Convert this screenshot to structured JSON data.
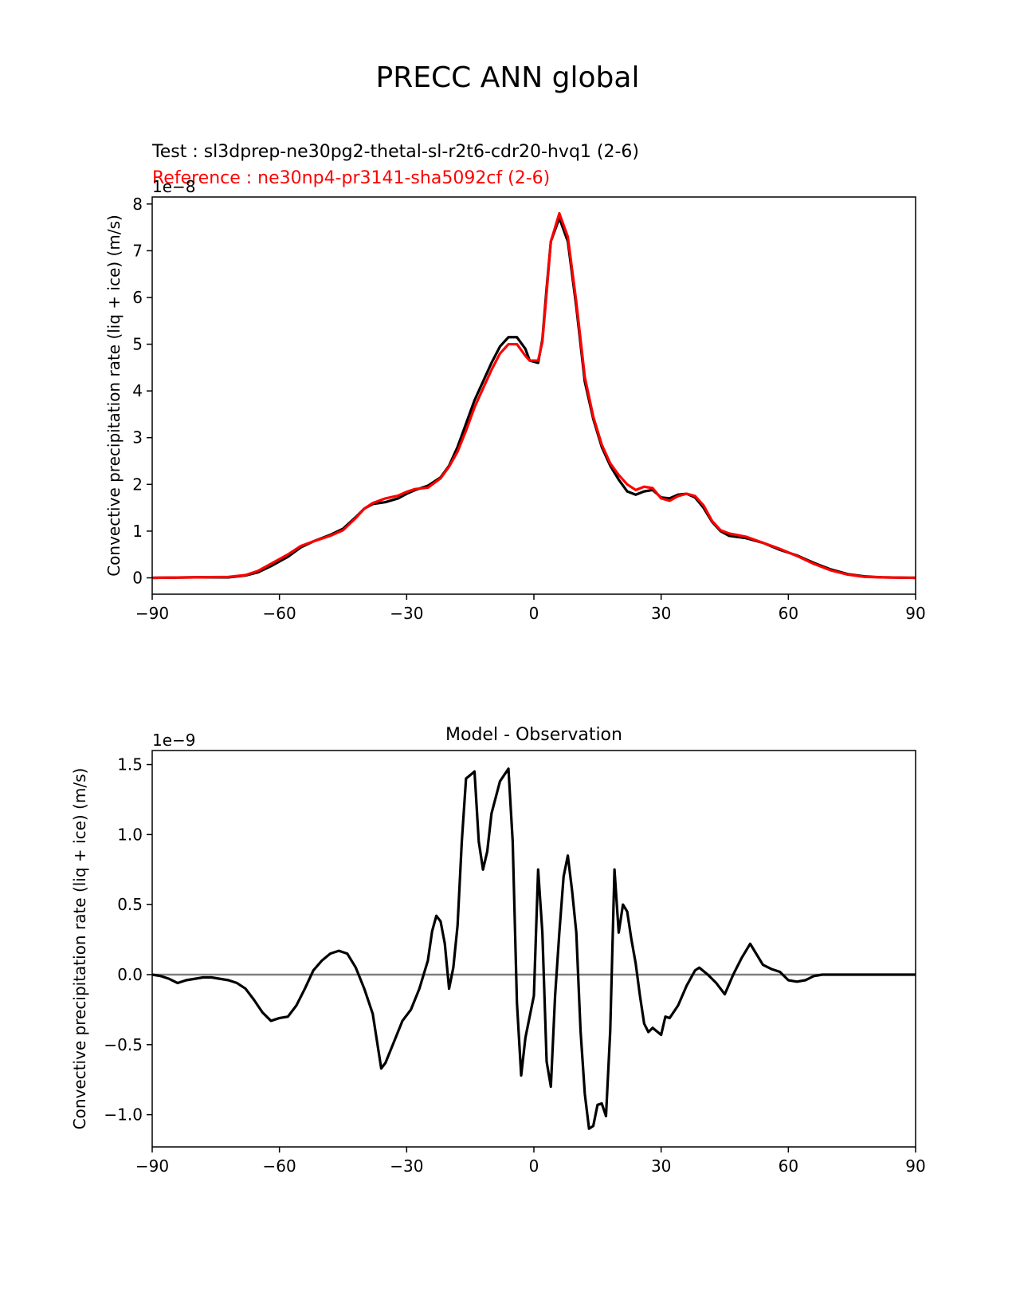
{
  "figure": {
    "title": "PRECC ANN global",
    "test_label": "Test : sl3dprep-ne30pg2-thetal-sl-r2t6-cdr20-hvq1 (2-6)",
    "reference_label": "Reference : ne30np4-pr3141-sha5092cf (2-6)",
    "colors": {
      "test": "#000000",
      "reference": "#ff0000",
      "zero_line": "#808080",
      "axes": "#000000"
    }
  },
  "chart_data": [
    {
      "type": "line",
      "title": "",
      "xlabel": "",
      "ylabel": "Convective precipitation rate (liq + ice) (m/s)",
      "y_offset_label": "1e−8",
      "y_scale": 1e-08,
      "xlim": [
        -90,
        90
      ],
      "ylim": [
        -0.35,
        8.15
      ],
      "xticks": [
        -90,
        -60,
        -30,
        0,
        30,
        60,
        90
      ],
      "xtick_labels": [
        "−90",
        "−60",
        "−30",
        "0",
        "30",
        "60",
        "90"
      ],
      "yticks": [
        0,
        1,
        2,
        3,
        4,
        5,
        6,
        7,
        8
      ],
      "ytick_labels": [
        "0",
        "1",
        "2",
        "3",
        "4",
        "5",
        "6",
        "7",
        "8"
      ],
      "grid": false,
      "series": [
        {
          "name": "Test : sl3dprep-ne30pg2-thetal-sl-r2t6-cdr20-hvq1 (2-6)",
          "color": "#000000",
          "points": [
            [
              -90,
              0.0
            ],
            [
              -80,
              0.01
            ],
            [
              -72,
              0.01
            ],
            [
              -68,
              0.05
            ],
            [
              -65,
              0.12
            ],
            [
              -62,
              0.25
            ],
            [
              -58,
              0.45
            ],
            [
              -55,
              0.65
            ],
            [
              -52,
              0.78
            ],
            [
              -48,
              0.92
            ],
            [
              -45,
              1.05
            ],
            [
              -42,
              1.3
            ],
            [
              -40,
              1.48
            ],
            [
              -38,
              1.58
            ],
            [
              -35,
              1.62
            ],
            [
              -32,
              1.7
            ],
            [
              -30,
              1.8
            ],
            [
              -28,
              1.88
            ],
            [
              -25,
              1.97
            ],
            [
              -22,
              2.15
            ],
            [
              -20,
              2.4
            ],
            [
              -18,
              2.8
            ],
            [
              -16,
              3.3
            ],
            [
              -14,
              3.8
            ],
            [
              -12,
              4.2
            ],
            [
              -10,
              4.6
            ],
            [
              -8,
              4.95
            ],
            [
              -6,
              5.15
            ],
            [
              -4,
              5.15
            ],
            [
              -2,
              4.9
            ],
            [
              -1,
              4.65
            ],
            [
              1,
              4.6
            ],
            [
              2,
              5.1
            ],
            [
              3,
              6.2
            ],
            [
              4,
              7.2
            ],
            [
              6,
              7.7
            ],
            [
              8,
              7.2
            ],
            [
              10,
              5.8
            ],
            [
              12,
              4.2
            ],
            [
              14,
              3.4
            ],
            [
              16,
              2.8
            ],
            [
              18,
              2.4
            ],
            [
              20,
              2.1
            ],
            [
              22,
              1.85
            ],
            [
              24,
              1.78
            ],
            [
              26,
              1.85
            ],
            [
              28,
              1.88
            ],
            [
              30,
              1.72
            ],
            [
              32,
              1.7
            ],
            [
              34,
              1.78
            ],
            [
              36,
              1.8
            ],
            [
              38,
              1.72
            ],
            [
              40,
              1.5
            ],
            [
              42,
              1.2
            ],
            [
              44,
              1.0
            ],
            [
              46,
              0.9
            ],
            [
              50,
              0.85
            ],
            [
              54,
              0.75
            ],
            [
              58,
              0.6
            ],
            [
              62,
              0.48
            ],
            [
              66,
              0.32
            ],
            [
              70,
              0.18
            ],
            [
              74,
              0.08
            ],
            [
              78,
              0.03
            ],
            [
              82,
              0.01
            ],
            [
              90,
              0.0
            ]
          ]
        },
        {
          "name": "Reference : ne30np4-pr3141-sha5092cf (2-6)",
          "color": "#ff0000",
          "points": [
            [
              -90,
              0.0
            ],
            [
              -80,
              0.01
            ],
            [
              -72,
              0.02
            ],
            [
              -68,
              0.06
            ],
            [
              -65,
              0.15
            ],
            [
              -62,
              0.3
            ],
            [
              -58,
              0.5
            ],
            [
              -55,
              0.68
            ],
            [
              -52,
              0.78
            ],
            [
              -48,
              0.9
            ],
            [
              -45,
              1.02
            ],
            [
              -42,
              1.28
            ],
            [
              -40,
              1.48
            ],
            [
              -38,
              1.6
            ],
            [
              -35,
              1.7
            ],
            [
              -32,
              1.76
            ],
            [
              -30,
              1.84
            ],
            [
              -28,
              1.9
            ],
            [
              -25,
              1.93
            ],
            [
              -22,
              2.13
            ],
            [
              -20,
              2.38
            ],
            [
              -18,
              2.7
            ],
            [
              -16,
              3.15
            ],
            [
              -14,
              3.65
            ],
            [
              -12,
              4.05
            ],
            [
              -10,
              4.45
            ],
            [
              -8,
              4.8
            ],
            [
              -6,
              5.0
            ],
            [
              -4,
              5.0
            ],
            [
              -2,
              4.75
            ],
            [
              -1,
              4.65
            ],
            [
              1,
              4.65
            ],
            [
              2,
              5.05
            ],
            [
              3,
              6.1
            ],
            [
              4,
              7.2
            ],
            [
              6,
              7.8
            ],
            [
              8,
              7.3
            ],
            [
              10,
              5.9
            ],
            [
              12,
              4.3
            ],
            [
              14,
              3.45
            ],
            [
              16,
              2.85
            ],
            [
              18,
              2.45
            ],
            [
              20,
              2.2
            ],
            [
              22,
              2.0
            ],
            [
              24,
              1.88
            ],
            [
              26,
              1.95
            ],
            [
              28,
              1.92
            ],
            [
              30,
              1.7
            ],
            [
              32,
              1.65
            ],
            [
              34,
              1.75
            ],
            [
              36,
              1.8
            ],
            [
              38,
              1.75
            ],
            [
              40,
              1.55
            ],
            [
              42,
              1.22
            ],
            [
              44,
              1.02
            ],
            [
              46,
              0.95
            ],
            [
              50,
              0.88
            ],
            [
              54,
              0.75
            ],
            [
              58,
              0.62
            ],
            [
              62,
              0.47
            ],
            [
              66,
              0.3
            ],
            [
              70,
              0.16
            ],
            [
              74,
              0.07
            ],
            [
              78,
              0.02
            ],
            [
              82,
              0.01
            ],
            [
              90,
              0.0
            ]
          ]
        }
      ]
    },
    {
      "type": "line",
      "title": "Model - Observation",
      "xlabel": "",
      "ylabel": "Convective precipitation rate (liq + ice) (m/s)",
      "y_offset_label": "1e−9",
      "y_scale": 1e-09,
      "xlim": [
        -90,
        90
      ],
      "ylim": [
        -1.23,
        1.6
      ],
      "xticks": [
        -90,
        -60,
        -30,
        0,
        30,
        60,
        90
      ],
      "xtick_labels": [
        "−90",
        "−60",
        "−30",
        "0",
        "30",
        "60",
        "90"
      ],
      "yticks": [
        -1.0,
        -0.5,
        0.0,
        0.5,
        1.0,
        1.5
      ],
      "ytick_labels": [
        "−1.0",
        "−0.5",
        "0.0",
        "0.5",
        "1.0",
        "1.5"
      ],
      "grid": false,
      "zero_line": true,
      "series": [
        {
          "name": "",
          "color": "#000000",
          "points": [
            [
              -90,
              0.0
            ],
            [
              -88,
              -0.01
            ],
            [
              -86,
              -0.03
            ],
            [
              -84,
              -0.06
            ],
            [
              -82,
              -0.04
            ],
            [
              -80,
              -0.03
            ],
            [
              -78,
              -0.02
            ],
            [
              -76,
              -0.02
            ],
            [
              -74,
              -0.03
            ],
            [
              -72,
              -0.04
            ],
            [
              -70,
              -0.06
            ],
            [
              -68,
              -0.1
            ],
            [
              -66,
              -0.18
            ],
            [
              -64,
              -0.27
            ],
            [
              -62,
              -0.33
            ],
            [
              -60,
              -0.31
            ],
            [
              -58,
              -0.3
            ],
            [
              -56,
              -0.22
            ],
            [
              -54,
              -0.1
            ],
            [
              -52,
              0.03
            ],
            [
              -50,
              0.1
            ],
            [
              -48,
              0.15
            ],
            [
              -46,
              0.17
            ],
            [
              -44,
              0.15
            ],
            [
              -42,
              0.05
            ],
            [
              -40,
              -0.1
            ],
            [
              -38,
              -0.28
            ],
            [
              -36,
              -0.67
            ],
            [
              -35,
              -0.63
            ],
            [
              -33,
              -0.48
            ],
            [
              -31,
              -0.33
            ],
            [
              -29,
              -0.25
            ],
            [
              -27,
              -0.1
            ],
            [
              -25,
              0.1
            ],
            [
              -24,
              0.31
            ],
            [
              -23,
              0.42
            ],
            [
              -22,
              0.38
            ],
            [
              -21,
              0.22
            ],
            [
              -20,
              -0.1
            ],
            [
              -19,
              0.05
            ],
            [
              -18,
              0.35
            ],
            [
              -17,
              0.95
            ],
            [
              -16,
              1.4
            ],
            [
              -14,
              1.45
            ],
            [
              -13,
              0.95
            ],
            [
              -12,
              0.75
            ],
            [
              -11,
              0.88
            ],
            [
              -10,
              1.15
            ],
            [
              -8,
              1.38
            ],
            [
              -6,
              1.47
            ],
            [
              -5,
              0.95
            ],
            [
              -4,
              -0.2
            ],
            [
              -3,
              -0.72
            ],
            [
              -2,
              -0.45
            ],
            [
              0,
              -0.15
            ],
            [
              1,
              0.75
            ],
            [
              2,
              0.3
            ],
            [
              3,
              -0.62
            ],
            [
              4,
              -0.8
            ],
            [
              5,
              -0.15
            ],
            [
              6,
              0.3
            ],
            [
              7,
              0.7
            ],
            [
              8,
              0.85
            ],
            [
              9,
              0.6
            ],
            [
              10,
              0.3
            ],
            [
              11,
              -0.4
            ],
            [
              12,
              -0.85
            ],
            [
              13,
              -1.1
            ],
            [
              14,
              -1.08
            ],
            [
              15,
              -0.93
            ],
            [
              16,
              -0.92
            ],
            [
              17,
              -1.01
            ],
            [
              18,
              -0.4
            ],
            [
              19,
              0.75
            ],
            [
              20,
              0.3
            ],
            [
              21,
              0.5
            ],
            [
              22,
              0.45
            ],
            [
              23,
              0.25
            ],
            [
              24,
              0.08
            ],
            [
              25,
              -0.15
            ],
            [
              26,
              -0.35
            ],
            [
              27,
              -0.41
            ],
            [
              28,
              -0.38
            ],
            [
              30,
              -0.43
            ],
            [
              31,
              -0.3
            ],
            [
              32,
              -0.31
            ],
            [
              34,
              -0.22
            ],
            [
              36,
              -0.08
            ],
            [
              38,
              0.03
            ],
            [
              39,
              0.05
            ],
            [
              41,
              0.0
            ],
            [
              43,
              -0.06
            ],
            [
              45,
              -0.14
            ],
            [
              47,
              0.0
            ],
            [
              49,
              0.12
            ],
            [
              51,
              0.22
            ],
            [
              52,
              0.17
            ],
            [
              54,
              0.07
            ],
            [
              56,
              0.04
            ],
            [
              58,
              0.02
            ],
            [
              60,
              -0.04
            ],
            [
              62,
              -0.05
            ],
            [
              64,
              -0.04
            ],
            [
              66,
              -0.01
            ],
            [
              68,
              0.0
            ],
            [
              70,
              0.0
            ],
            [
              75,
              0.0
            ],
            [
              80,
              0.0
            ],
            [
              90,
              0.0
            ]
          ]
        }
      ]
    }
  ]
}
